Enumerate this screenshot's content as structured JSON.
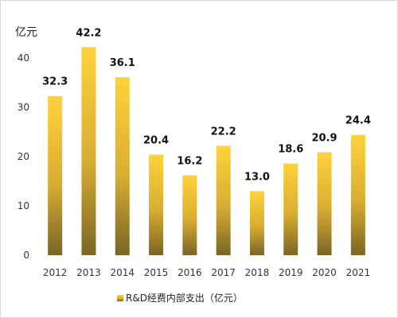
{
  "chart_data": {
    "type": "bar",
    "unit_label": "亿元",
    "categories": [
      "2012",
      "2013",
      "2014",
      "2015",
      "2016",
      "2017",
      "2018",
      "2019",
      "2020",
      "2021"
    ],
    "series": [
      {
        "name": "R&D经费内部支出（亿元）",
        "values": [
          32.3,
          42.2,
          36.1,
          20.4,
          16.2,
          22.2,
          13.0,
          18.6,
          20.9,
          24.4
        ]
      }
    ],
    "value_labels": [
      "32.3",
      "42.2",
      "36.1",
      "20.4",
      "16.2",
      "22.2",
      "13.0",
      "18.6",
      "20.9",
      "24.4"
    ],
    "yticks": [
      "0",
      "10",
      "20",
      "30",
      "40"
    ],
    "ylim": [
      0,
      45
    ],
    "grid": false,
    "legend_position": "bottom",
    "colors": {
      "bar_top": "#ffd23a",
      "bar_bottom": "#7a6526"
    }
  }
}
